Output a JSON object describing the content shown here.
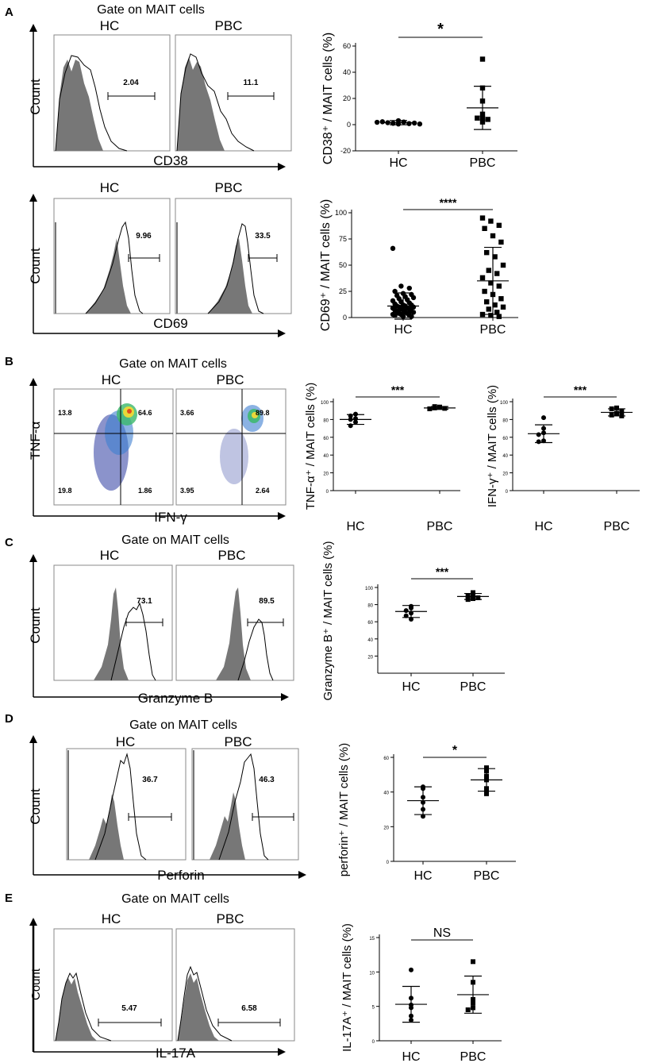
{
  "gate_title": "Gate on MAIT cells",
  "panels": {
    "A": {
      "letter": "A",
      "hist_rows": [
        {
          "hc_label": "HC",
          "pbc_label": "PBC",
          "ylabel": "Count",
          "xlabel": "CD38",
          "hc_value": "2.04",
          "pbc_value": "11.1"
        },
        {
          "hc_label": "HC",
          "pbc_label": "PBC",
          "ylabel": "Count",
          "xlabel": "CD69",
          "hc_value": "9.96",
          "pbc_value": "33.5"
        }
      ]
    },
    "B": {
      "letter": "B",
      "hc_label": "HC",
      "pbc_label": "PBC",
      "ylabel": "TNF-α",
      "xlabel": "IFN-γ",
      "hc_quadrants": [
        "13.8",
        "64.6",
        "19.8",
        "1.86"
      ],
      "pbc_quadrants": [
        "3.66",
        "89.8",
        "3.95",
        "2.64"
      ]
    },
    "C": {
      "letter": "C",
      "hc_label": "HC",
      "pbc_label": "PBC",
      "ylabel": "Count",
      "xlabel": "Granzyme B",
      "hc_value": "73.1",
      "pbc_value": "89.5"
    },
    "D": {
      "letter": "D",
      "hc_label": "HC",
      "pbc_label": "PBC",
      "ylabel": "Count",
      "xlabel": "Perforin",
      "hc_value": "36.7",
      "pbc_value": "46.3"
    },
    "E": {
      "letter": "E",
      "hc_label": "HC",
      "pbc_label": "PBC",
      "ylabel": "Count",
      "xlabel": "IL-17A",
      "hc_value": "5.47",
      "pbc_value": "6.58"
    }
  },
  "chart_data": [
    {
      "id": "cd38",
      "type": "scatter",
      "ylabel": "CD38⁺ / MAIT cells (%)",
      "categories": [
        "HC",
        "PBC"
      ],
      "ylim": [
        -20,
        60
      ],
      "yticks": [
        -20,
        0,
        20,
        40,
        60
      ],
      "significance": "*",
      "series": [
        {
          "name": "HC",
          "marker": "circle",
          "mean": 1.5,
          "sd": 1.6,
          "values": [
            0.5,
            1.0,
            2.0,
            1.5,
            3.0,
            0.8,
            2.2,
            1.2,
            1.8,
            0.5
          ]
        },
        {
          "name": "PBC",
          "marker": "square",
          "mean": 12.8,
          "sd": 16.5,
          "values": [
            50,
            28,
            18,
            8,
            5,
            5,
            2,
            4
          ]
        }
      ]
    },
    {
      "id": "cd69",
      "type": "scatter",
      "ylabel": "CD69⁺ / MAIT cells (%)",
      "categories": [
        "HC",
        "PBC"
      ],
      "ylim": [
        0,
        100
      ],
      "yticks": [
        0,
        25,
        50,
        75,
        100
      ],
      "significance": "****",
      "series": [
        {
          "name": "HC",
          "marker": "circle",
          "mean": 11,
          "sd": 12.5,
          "values": [
            66,
            30,
            28,
            25,
            23,
            22,
            21,
            20,
            19,
            18,
            17,
            16,
            15,
            14,
            13,
            12,
            12,
            11,
            11,
            10,
            10,
            9,
            9,
            8,
            8,
            7,
            7,
            6,
            6,
            5,
            5,
            4,
            4,
            3,
            3,
            2,
            2,
            1,
            1
          ]
        },
        {
          "name": "PBC",
          "marker": "square",
          "mean": 35,
          "sd": 32,
          "values": [
            95,
            92,
            88,
            85,
            78,
            72,
            62,
            58,
            50,
            45,
            42,
            38,
            33,
            30,
            25,
            22,
            18,
            15,
            12,
            10,
            8,
            5,
            3,
            2,
            1
          ]
        }
      ]
    },
    {
      "id": "tnf",
      "type": "scatter",
      "ylabel": "TNF-α⁺ / MAIT cells (%)",
      "categories": [
        "HC",
        "PBC"
      ],
      "ylim": [
        0,
        100
      ],
      "yticks": [
        0,
        20,
        40,
        60,
        80,
        100
      ],
      "significance": "***",
      "series": [
        {
          "name": "HC",
          "marker": "circle",
          "mean": 80,
          "sd": 5.5,
          "values": [
            86,
            84,
            81,
            80,
            77,
            73
          ]
        },
        {
          "name": "PBC",
          "marker": "square",
          "mean": 93,
          "sd": 1.5,
          "values": [
            94,
            93.5,
            93,
            92.5,
            92,
            94.5
          ]
        }
      ]
    },
    {
      "id": "ifn",
      "type": "scatter",
      "ylabel": "IFN-γ⁺ / MAIT cells (%)",
      "categories": [
        "HC",
        "PBC"
      ],
      "ylim": [
        0,
        100
      ],
      "yticks": [
        0,
        20,
        40,
        60,
        80,
        100
      ],
      "significance": "***",
      "series": [
        {
          "name": "HC",
          "marker": "circle",
          "mean": 64,
          "sd": 10,
          "values": [
            82,
            70,
            65,
            63,
            56,
            55
          ]
        },
        {
          "name": "PBC",
          "marker": "square",
          "mean": 88,
          "sd": 4,
          "values": [
            93,
            92,
            89,
            87,
            85,
            84
          ]
        }
      ]
    },
    {
      "id": "gzmb",
      "type": "scatter",
      "ylabel": "Granzyme B⁺ / MAIT cells (%)",
      "categories": [
        "HC",
        "PBC"
      ],
      "ylim": [
        0,
        100
      ],
      "yticks": [
        20,
        40,
        60,
        80,
        100
      ],
      "significance": "***",
      "series": [
        {
          "name": "HC",
          "marker": "circle",
          "mean": 72,
          "sd": 7,
          "values": [
            78,
            76,
            73,
            70,
            67,
            63
          ]
        },
        {
          "name": "PBC",
          "marker": "square",
          "mean": 89.5,
          "sd": 3.5,
          "values": [
            94,
            92,
            90,
            88,
            87,
            86
          ]
        }
      ]
    },
    {
      "id": "perforin",
      "type": "scatter",
      "ylabel": "perforin⁺ / MAIT cells (%)",
      "categories": [
        "HC",
        "PBC"
      ],
      "ylim": [
        0,
        60
      ],
      "yticks": [
        0,
        20,
        40,
        60
      ],
      "significance": "*",
      "series": [
        {
          "name": "HC",
          "marker": "circle",
          "mean": 35,
          "sd": 8,
          "values": [
            43,
            42,
            37,
            34,
            30,
            26
          ]
        },
        {
          "name": "PBC",
          "marker": "square",
          "mean": 47,
          "sd": 6.5,
          "values": [
            54,
            52,
            49,
            47,
            42,
            39
          ]
        }
      ]
    },
    {
      "id": "il17",
      "type": "scatter",
      "ylabel": "IL-17A⁺ / MAIT cells (%)",
      "categories": [
        "HC",
        "PBC"
      ],
      "ylim": [
        0,
        15
      ],
      "yticks": [
        0,
        5,
        10,
        15
      ],
      "significance": "NS",
      "series": [
        {
          "name": "HC",
          "marker": "circle",
          "mean": 5.3,
          "sd": 2.6,
          "values": [
            10.3,
            6.2,
            5.2,
            4.8,
            3.6,
            3.0
          ]
        },
        {
          "name": "PBC",
          "marker": "square",
          "mean": 6.7,
          "sd": 2.7,
          "values": [
            11.5,
            8.5,
            6.0,
            5.5,
            4.8,
            4.5
          ]
        }
      ]
    }
  ]
}
